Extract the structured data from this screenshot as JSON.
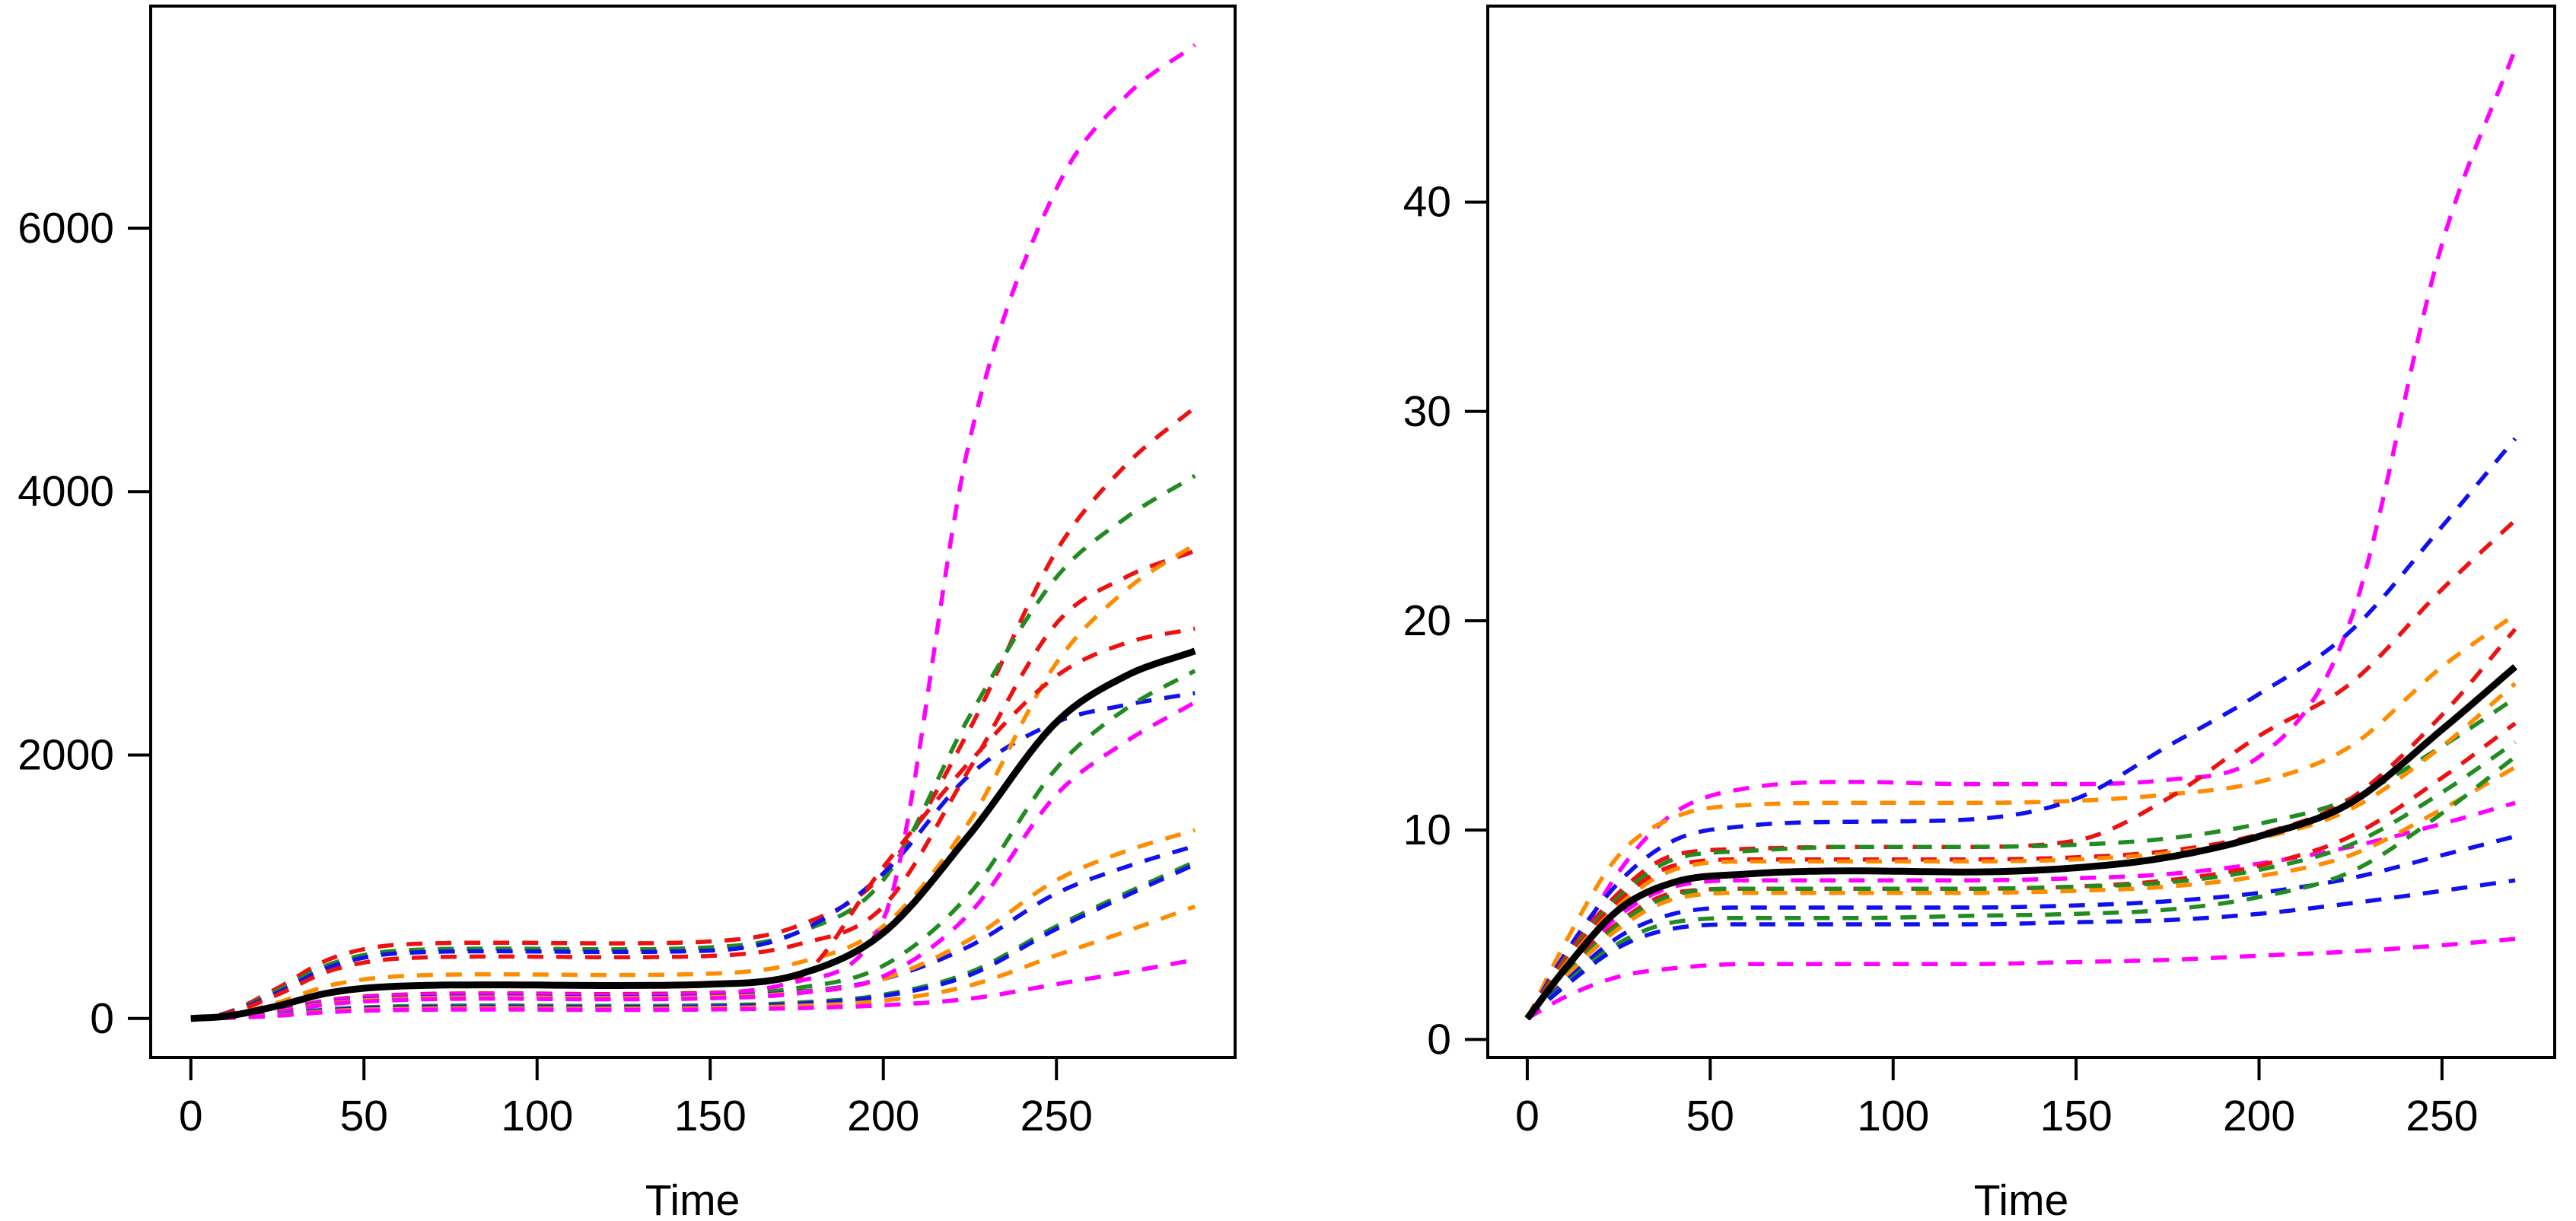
{
  "figure": {
    "background": "#ffffff",
    "axis_color": "#000000",
    "palette": {
      "black": "#000000",
      "red": "#EE1111",
      "green": "#228B22",
      "blue": "#1111EE",
      "orange": "#FF8C00",
      "magenta": "#FF00FF"
    }
  },
  "chart_data": [
    {
      "type": "line",
      "title": "",
      "xlabel": "Time",
      "ylabel": "",
      "legend": "none",
      "grid": false,
      "x_ticks": [
        0,
        50,
        100,
        150,
        200,
        250
      ],
      "y_ticks": [
        0,
        2000,
        4000,
        6000
      ],
      "xlim": [
        -11.6,
        301.6
      ],
      "ylim": [
        -296,
        7686
      ],
      "x": [
        0,
        10,
        25,
        40,
        60,
        90,
        120,
        150,
        175,
        200,
        225,
        250,
        270,
        290
      ],
      "series": [
        {
          "name": "curve-red-1",
          "color": "#EE1111",
          "style": "dashed",
          "values": [
            0,
            40,
            230,
            450,
            560,
            575,
            570,
            585,
            700,
            1100,
            2200,
            3550,
            4200,
            4640
          ]
        },
        {
          "name": "curve-green-1",
          "color": "#228B22",
          "style": "dashed",
          "values": [
            0,
            35,
            210,
            410,
            515,
            530,
            525,
            540,
            650,
            1050,
            2300,
            3350,
            3800,
            4120
          ]
        },
        {
          "name": "curve-blue-1",
          "color": "#1111EE",
          "style": "dashed",
          "values": [
            0,
            33,
            195,
            390,
            495,
            510,
            505,
            515,
            650,
            1100,
            1850,
            2250,
            2380,
            2470
          ]
        },
        {
          "name": "curve-red-2",
          "color": "#EE1111",
          "style": "dashed",
          "values": [
            0,
            30,
            180,
            360,
            455,
            470,
            465,
            475,
            560,
            850,
            1900,
            3000,
            3350,
            3550
          ]
        },
        {
          "name": "curve-orange-1",
          "color": "#FF8C00",
          "style": "dashed",
          "values": [
            0,
            20,
            120,
            250,
            320,
            335,
            330,
            340,
            420,
            700,
            1500,
            2700,
            3250,
            3600
          ]
        },
        {
          "name": "curve-red-3",
          "color": "#EE1111",
          "style": "dashed",
          "values": [
            0,
            12,
            65,
            140,
            180,
            190,
            185,
            195,
            300,
            1150,
            1950,
            2600,
            2850,
            2960
          ]
        },
        {
          "name": "curve-green-2",
          "color": "#228B22",
          "style": "dashed",
          "values": [
            0,
            11,
            60,
            130,
            170,
            180,
            175,
            185,
            230,
            400,
            950,
            1900,
            2350,
            2640
          ]
        },
        {
          "name": "curve-magenta-1",
          "color": "#FF00FF",
          "style": "dashed",
          "values": [
            0,
            11,
            62,
            135,
            175,
            185,
            180,
            190,
            280,
            750,
            4400,
            6300,
            7000,
            7390
          ]
        },
        {
          "name": "curve-blue-2",
          "color": "#1111EE",
          "style": "dashed",
          "values": [
            0,
            10,
            55,
            120,
            155,
            165,
            160,
            168,
            200,
            300,
            550,
            950,
            1150,
            1310
          ]
        },
        {
          "name": "curve-orange-2",
          "color": "#FF8C00",
          "style": "dashed",
          "values": [
            0,
            10,
            52,
            115,
            150,
            160,
            155,
            163,
            195,
            300,
            600,
            1050,
            1270,
            1430
          ]
        },
        {
          "name": "curve-magenta-2",
          "color": "#FF00FF",
          "style": "dashed",
          "values": [
            0,
            9,
            48,
            108,
            140,
            150,
            145,
            153,
            190,
            320,
            800,
            1700,
            2100,
            2400
          ]
        },
        {
          "name": "curve-green-3",
          "color": "#228B22",
          "style": "dashed",
          "values": [
            0,
            6,
            30,
            70,
            92,
            98,
            95,
            100,
            120,
            180,
            350,
            700,
            950,
            1190
          ]
        },
        {
          "name": "curve-blue-3",
          "color": "#1111EE",
          "style": "dashed",
          "values": [
            0,
            5,
            27,
            63,
            83,
            88,
            85,
            90,
            110,
            170,
            330,
            680,
            930,
            1170
          ]
        },
        {
          "name": "curve-orange-3",
          "color": "#FF8C00",
          "style": "dashed",
          "values": [
            0,
            5,
            24,
            56,
            73,
            78,
            75,
            79,
            95,
            135,
            250,
            480,
            660,
            850
          ]
        },
        {
          "name": "curve-magenta-3",
          "color": "#FF00FF",
          "style": "dashed",
          "values": [
            0,
            4,
            21,
            49,
            64,
            68,
            65,
            68,
            78,
            100,
            150,
            260,
            350,
            445
          ]
        }
      ],
      "mean_series": {
        "name": "mean-curve",
        "color": "#000000",
        "style": "solid",
        "values": [
          0,
          16,
          95,
          195,
          245,
          255,
          250,
          260,
          330,
          650,
          1400,
          2250,
          2600,
          2790
        ]
      }
    },
    {
      "type": "line",
      "title": "",
      "xlabel": "Time",
      "ylabel": "",
      "legend": "none",
      "grid": false,
      "x_ticks": [
        0,
        50,
        100,
        150,
        200,
        250
      ],
      "y_ticks": [
        0,
        10,
        20,
        30,
        40
      ],
      "xlim": [
        -10.8,
        280.8
      ],
      "ylim": [
        -0.86,
        49.36
      ],
      "x": [
        0,
        10,
        25,
        40,
        60,
        90,
        120,
        150,
        175,
        200,
        225,
        250,
        270
      ],
      "series": [
        {
          "name": "curve-magenta-1",
          "color": "#FF00FF",
          "style": "dashed",
          "values": [
            1,
            3.5,
            8.0,
            10.8,
            12.0,
            12.3,
            12.2,
            12.2,
            12.4,
            13.5,
            20.0,
            38.0,
            47.3
          ]
        },
        {
          "name": "curve-orange-1",
          "color": "#FF8C00",
          "style": "dashed",
          "values": [
            1,
            4.5,
            8.8,
            10.6,
            11.2,
            11.3,
            11.3,
            11.4,
            11.7,
            12.3,
            14.0,
            17.8,
            20.3
          ]
        },
        {
          "name": "curve-blue-1",
          "color": "#1111EE",
          "style": "dashed",
          "values": [
            1,
            4.0,
            7.5,
            9.5,
            10.2,
            10.4,
            10.5,
            11.5,
            14.0,
            16.5,
            19.5,
            24.5,
            28.7
          ]
        },
        {
          "name": "curve-red-1",
          "color": "#EE1111",
          "style": "dashed",
          "values": [
            1,
            3.8,
            7.0,
            8.8,
            9.1,
            9.2,
            9.2,
            9.5,
            11.5,
            14.5,
            17.0,
            21.5,
            24.8
          ]
        },
        {
          "name": "curve-green-1",
          "color": "#228B22",
          "style": "dashed",
          "values": [
            1,
            3.7,
            6.8,
            8.6,
            9.0,
            9.2,
            9.2,
            9.3,
            9.6,
            10.3,
            11.5,
            14.0,
            16.3
          ]
        },
        {
          "name": "curve-red-2",
          "color": "#EE1111",
          "style": "dashed",
          "values": [
            1,
            3.6,
            6.6,
            8.3,
            8.6,
            8.6,
            8.6,
            8.7,
            9.0,
            9.8,
            11.5,
            15.5,
            19.6
          ]
        },
        {
          "name": "curve-orange-2",
          "color": "#FF8C00",
          "style": "dashed",
          "values": [
            1,
            3.5,
            6.4,
            8.1,
            8.5,
            8.5,
            8.5,
            8.6,
            8.9,
            9.6,
            11.0,
            14.0,
            17.0
          ]
        },
        {
          "name": "curve-magenta-2",
          "color": "#FF00FF",
          "style": "dashed",
          "values": [
            1,
            3.2,
            5.9,
            7.3,
            7.6,
            7.6,
            7.6,
            7.7,
            7.9,
            8.4,
            9.2,
            10.3,
            11.3
          ]
        },
        {
          "name": "curve-red-3",
          "color": "#EE1111",
          "style": "dashed",
          "values": [
            1,
            3.1,
            5.6,
            7.0,
            7.2,
            7.2,
            7.2,
            7.3,
            7.6,
            8.3,
            9.7,
            12.5,
            15.1
          ]
        },
        {
          "name": "curve-green-2",
          "color": "#228B22",
          "style": "dashed",
          "values": [
            1,
            3.0,
            5.5,
            6.9,
            7.2,
            7.2,
            7.2,
            7.3,
            7.5,
            8.1,
            9.3,
            11.8,
            14.2
          ]
        },
        {
          "name": "curve-orange-3",
          "color": "#FF8C00",
          "style": "dashed",
          "values": [
            1,
            2.9,
            5.3,
            6.7,
            7.0,
            7.0,
            7.0,
            7.1,
            7.3,
            7.8,
            8.8,
            11.0,
            13.0
          ]
        },
        {
          "name": "curve-blue-2",
          "color": "#1111EE",
          "style": "dashed",
          "values": [
            1,
            2.7,
            4.9,
            6.0,
            6.3,
            6.3,
            6.3,
            6.4,
            6.6,
            7.0,
            7.7,
            8.8,
            9.7
          ]
        },
        {
          "name": "curve-green-3",
          "color": "#228B22",
          "style": "dashed",
          "values": [
            1,
            2.6,
            4.6,
            5.6,
            5.8,
            5.8,
            5.9,
            6.0,
            6.2,
            6.8,
            8.0,
            10.8,
            13.5
          ]
        },
        {
          "name": "curve-blue-3",
          "color": "#1111EE",
          "style": "dashed",
          "values": [
            1,
            2.5,
            4.4,
            5.3,
            5.5,
            5.5,
            5.5,
            5.6,
            5.7,
            6.0,
            6.5,
            7.1,
            7.6
          ]
        },
        {
          "name": "curve-magenta-3",
          "color": "#FF00FF",
          "style": "dashed",
          "values": [
            1,
            2.0,
            3.0,
            3.4,
            3.6,
            3.6,
            3.6,
            3.7,
            3.8,
            4.0,
            4.2,
            4.5,
            4.8
          ]
        }
      ],
      "mean_series": {
        "name": "mean-curve",
        "color": "#000000",
        "style": "solid",
        "values": [
          1,
          3.3,
          6.2,
          7.5,
          7.9,
          8.05,
          8.0,
          8.2,
          8.7,
          9.7,
          11.3,
          14.8,
          17.8
        ]
      }
    }
  ]
}
